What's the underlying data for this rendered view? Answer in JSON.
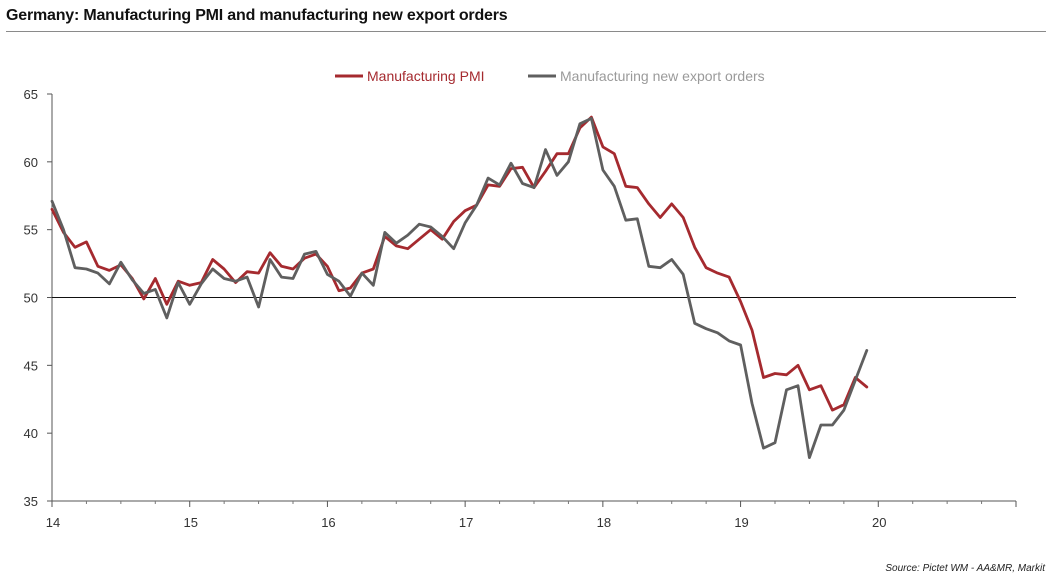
{
  "chart_data": {
    "type": "line",
    "title": "Germany: Manufacturing PMI and manufacturing new export orders",
    "source": "Source: Pictet WM - AA&MR, Markit",
    "xlabel": "",
    "ylabel": "",
    "xlim": [
      14,
      21
    ],
    "ylim": [
      35,
      65
    ],
    "x_ticks": [
      14,
      15,
      16,
      17,
      18,
      19,
      20
    ],
    "y_ticks": [
      35,
      40,
      45,
      50,
      55,
      60,
      65
    ],
    "reference_line": 50,
    "legend_position": "top",
    "series": [
      {
        "name": "Manufacturing PMI",
        "color": "#a52a2f",
        "start": 14.0,
        "step": 0.0833333,
        "values": [
          56.5,
          54.8,
          53.7,
          54.1,
          52.3,
          52.0,
          52.4,
          51.4,
          49.9,
          51.4,
          49.5,
          51.2,
          50.9,
          51.1,
          52.8,
          52.1,
          51.1,
          51.9,
          51.8,
          53.3,
          52.3,
          52.1,
          52.9,
          53.2,
          52.3,
          50.5,
          50.7,
          51.8,
          52.1,
          54.5,
          53.8,
          53.6,
          54.3,
          55.0,
          54.3,
          55.6,
          56.4,
          56.8,
          58.3,
          58.2,
          59.5,
          59.6,
          58.1,
          59.3,
          60.6,
          60.6,
          62.5,
          63.3,
          61.1,
          60.6,
          58.2,
          58.1,
          56.9,
          55.9,
          56.9,
          55.9,
          53.7,
          52.2,
          51.8,
          51.5,
          49.7,
          47.6,
          44.1,
          44.4,
          44.3,
          45.0,
          43.2,
          43.5,
          41.7,
          42.1,
          44.1,
          43.4
        ]
      },
      {
        "name": "Manufacturing new export orders",
        "color": "#5f5f5f",
        "start": 14.0,
        "step": 0.0833333,
        "values": [
          57.1,
          55.0,
          52.2,
          52.1,
          51.8,
          51.0,
          52.6,
          51.3,
          50.3,
          50.6,
          48.5,
          51.1,
          49.5,
          51.0,
          52.1,
          51.4,
          51.2,
          51.5,
          49.3,
          52.8,
          51.5,
          51.4,
          53.2,
          53.4,
          51.7,
          51.2,
          50.1,
          51.8,
          50.9,
          54.8,
          54.0,
          54.6,
          55.4,
          55.2,
          54.5,
          53.6,
          55.5,
          56.8,
          58.8,
          58.3,
          59.9,
          58.4,
          58.1,
          60.9,
          59.0,
          60.0,
          62.8,
          63.2,
          59.4,
          58.2,
          55.7,
          55.8,
          52.3,
          52.2,
          52.8,
          51.7,
          48.1,
          47.7,
          47.4,
          46.8,
          46.5,
          42.2,
          38.9,
          39.3,
          43.2,
          43.5,
          38.2,
          40.6,
          40.6,
          41.7,
          43.9,
          46.1
        ]
      }
    ]
  }
}
